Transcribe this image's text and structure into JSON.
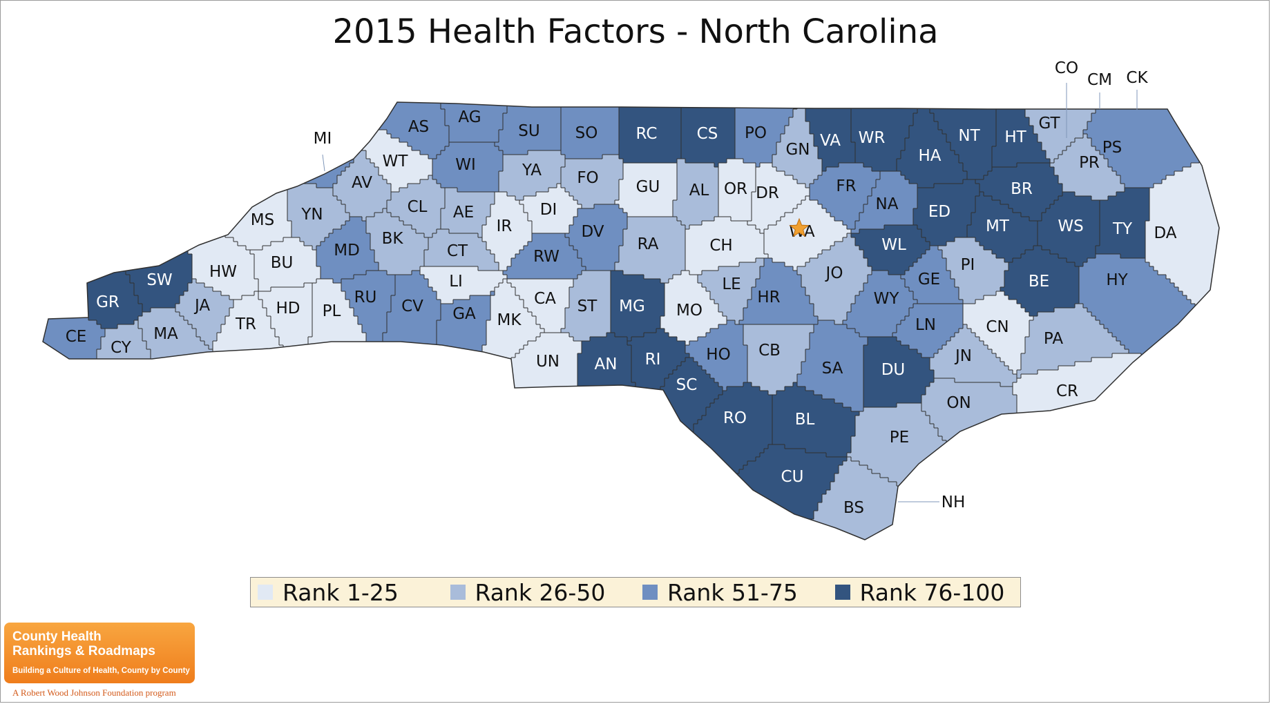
{
  "title": "2015 Health Factors - North Carolina",
  "colors": {
    "rank_1_25": "#e1e9f4",
    "rank_26_50": "#a9bcda",
    "rank_51_75": "#6f8fc1",
    "rank_76_100": "#33547f",
    "border": "#2f2f2f",
    "star": "#f0a030"
  },
  "legend": [
    {
      "label": "Rank 1-25",
      "color": "#e1e9f4"
    },
    {
      "label": "Rank 26-50",
      "color": "#a9bcda"
    },
    {
      "label": "Rank 51-75",
      "color": "#6f8fc1"
    },
    {
      "label": "Rank 76-100",
      "color": "#33547f"
    }
  ],
  "counties": {
    "AS": 3,
    "AG": 3,
    "SU": 3,
    "SO": 3,
    "RC": 4,
    "CS": 4,
    "PO": 3,
    "GN": 2,
    "VA": 4,
    "WR": 4,
    "NT": 4,
    "HT": 4,
    "GT": 2,
    "CO": 2,
    "CM": 1,
    "CK": 1,
    "PS": 3,
    "PR": 2,
    "MI": 3,
    "WT": 1,
    "WI": 3,
    "YA": 2,
    "FO": 2,
    "GU": 1,
    "AL": 2,
    "OR": 1,
    "DR": 1,
    "FR": 3,
    "HA": 4,
    "BR": 4,
    "WS": 4,
    "TY": 4,
    "DA": 1,
    "AV": 2,
    "YN": 2,
    "MS": 1,
    "CL": 2,
    "AE": 2,
    "IR": 1,
    "DI": 1,
    "DV": 3,
    "RA": 2,
    "CH": 1,
    "WA": 1,
    "NA": 3,
    "ED": 4,
    "MT": 4,
    "WL": 4,
    "BK": 2,
    "MD": 3,
    "BU": 1,
    "HW": 1,
    "SW": 4,
    "GR": 4,
    "CE": 3,
    "CY": 2,
    "MA": 2,
    "JA": 2,
    "TR": 1,
    "HD": 1,
    "PL": 1,
    "RU": 3,
    "CV": 3,
    "CT": 2,
    "LI": 1,
    "GA": 3,
    "MK": 1,
    "CA": 1,
    "UN": 1,
    "ST": 2,
    "RW": 3,
    "MG": 4,
    "AN": 4,
    "RI": 4,
    "MO": 1,
    "LE": 2,
    "HR": 3,
    "JO": 2,
    "HO": 3,
    "CB": 2,
    "SC": 4,
    "RO": 4,
    "BL": 4,
    "CU": 4,
    "BS": 2,
    "SA": 3,
    "DU": 4,
    "PE": 2,
    "NH": 1,
    "ON": 2,
    "WY": 3,
    "GE": 3,
    "LN": 3,
    "JN": 2,
    "PI": 2,
    "CN": 1,
    "BE": 4,
    "HY": 3,
    "PA": 2,
    "CR": 1
  },
  "callouts": [
    "MI",
    "CO",
    "CM",
    "CK",
    "NH"
  ],
  "star_county": "WA",
  "logo": {
    "line1": "County Health",
    "line2": "Rankings & Roadmaps",
    "tagline": "Building a Culture of Health, County by County",
    "sub": "A Robert Wood Johnson Foundation program"
  }
}
